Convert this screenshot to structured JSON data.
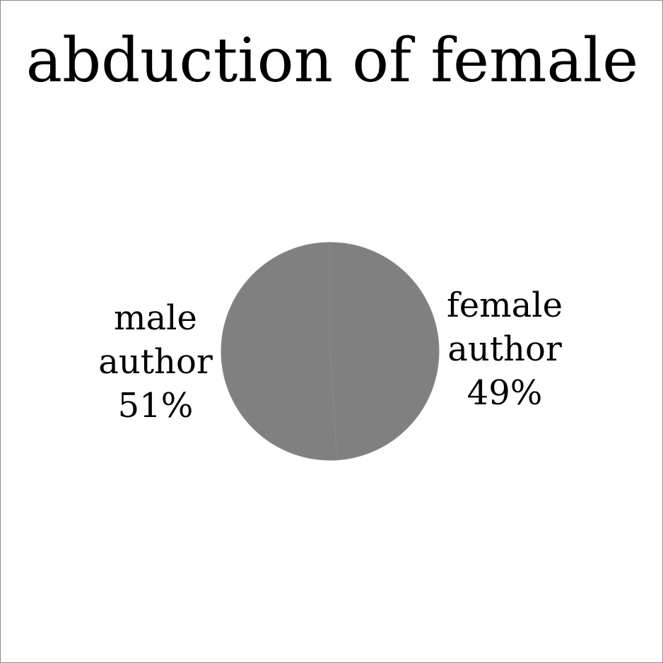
{
  "chart_data": {
    "type": "pie",
    "title": "abduction of female",
    "slices": [
      {
        "name": "female author",
        "value": 49,
        "label_lines": [
          "female",
          "author",
          "49%"
        ]
      },
      {
        "name": "male author",
        "value": 51,
        "label_lines": [
          "male",
          "author",
          "51%"
        ]
      }
    ],
    "legend": "none",
    "colors": {
      "slice": "#808080",
      "border": "#8c8c8c",
      "text": "#000000"
    }
  }
}
